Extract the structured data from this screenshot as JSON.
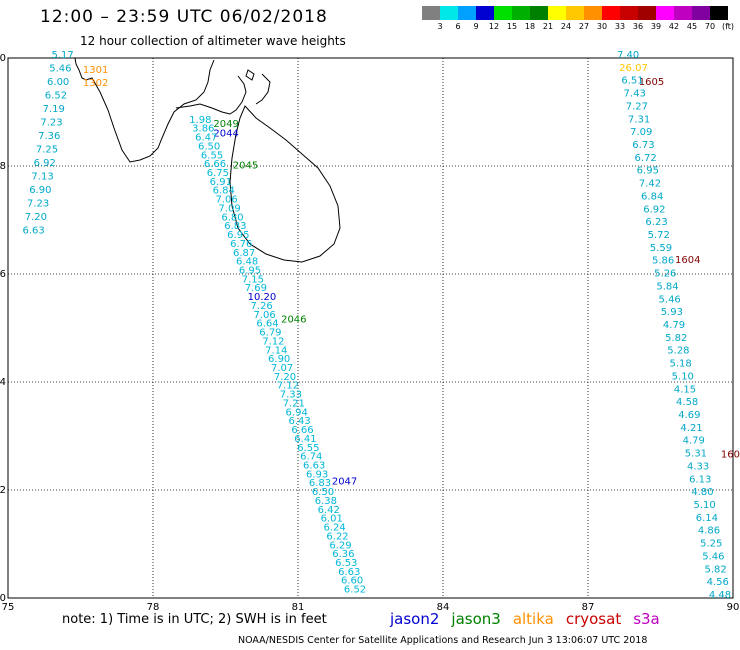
{
  "header": {
    "title": "12:00 – 23:59 UTC 06/02/2018",
    "subtitle": "12 hour collection of altimeter wave heights"
  },
  "colorbar": {
    "colors": [
      "#808080",
      "#00e8e8",
      "#00a0ff",
      "#0000d0",
      "#00e000",
      "#00b000",
      "#008000",
      "#ffff00",
      "#ffc800",
      "#ff9000",
      "#ff0000",
      "#c80000",
      "#a00000",
      "#ff00ff",
      "#c000c0",
      "#8000a0",
      "#000000"
    ],
    "labels": [
      "3",
      "6",
      "9",
      "12",
      "15",
      "18",
      "21",
      "24",
      "27",
      "30",
      "33",
      "36",
      "39",
      "42",
      "45",
      "70"
    ],
    "unit": "(ft)"
  },
  "axes": {
    "x_ticks": [
      "75",
      "78",
      "81",
      "84",
      "87",
      "90"
    ],
    "y_ticks": [
      "0",
      "2",
      "4",
      "6",
      "8",
      "10"
    ]
  },
  "note": "note: 1) Time is in UTC; 2) SWH is in feet",
  "satellites": [
    {
      "name": "jason2",
      "color": "#0000d0"
    },
    {
      "name": "jason3",
      "color": "#008000"
    },
    {
      "name": "altika",
      "color": "#ff9000"
    },
    {
      "name": "cryosat",
      "color": "#c80000"
    },
    {
      "name": "s3a",
      "color": "#c000c0"
    }
  ],
  "footer": "NOAA/NESDIS Center for Satellite Applications and Research   Jun  3 13:06:07 UTC 2018",
  "map_data": {
    "time_labels": [
      {
        "text": "1301",
        "lon": 76.55,
        "lat": 9.72,
        "color": "#ff9000"
      },
      {
        "text": "1302",
        "lon": 76.55,
        "lat": 9.48,
        "color": "#ff9000"
      },
      {
        "text": "1605",
        "lon": 88.05,
        "lat": 9.5,
        "color": "#800000"
      },
      {
        "text": "1604",
        "lon": 88.8,
        "lat": 6.2,
        "color": "#800000"
      },
      {
        "text": "160",
        "lon": 89.75,
        "lat": 2.6,
        "color": "#800000"
      },
      {
        "text": "2049",
        "lon": 79.25,
        "lat": 8.72,
        "color": "#008000"
      },
      {
        "text": "2044",
        "lon": 79.25,
        "lat": 8.55,
        "color": "#0000d0"
      },
      {
        "text": "2045",
        "lon": 79.65,
        "lat": 7.95,
        "color": "#008000"
      },
      {
        "text": "2046",
        "lon": 80.65,
        "lat": 5.1,
        "color": "#008000"
      },
      {
        "text": "2047",
        "lon": 81.7,
        "lat": 2.1,
        "color": "#0000d0"
      }
    ],
    "track_west": {
      "color": "#00a8c8",
      "values": [
        "5.17",
        "5.46",
        "6.00",
        "6.52",
        "7.19",
        "7.23",
        "7.36",
        "7.25",
        "6.92",
        "7.13",
        "6.90",
        "7.23",
        "7.20",
        "6.63"
      ],
      "lon_start": 75.9,
      "lon_end": 75.3,
      "lat_start": 10.0,
      "lat_end": 6.75
    },
    "track_east": {
      "color": "#00a8c8",
      "values": [
        "7.40",
        "26.07",
        "6.51",
        "7.43",
        "7.27",
        "7.31",
        "7.09",
        "6.73",
        "6.72",
        "6.95",
        "7.42",
        "6.84",
        "6.92",
        "6.23",
        "5.72",
        "5.59",
        "5.86",
        "5.26",
        "5.84",
        "5.46",
        "5.93",
        "4.79",
        "5.82",
        "5.28",
        "5.18",
        "5.10",
        "4.15",
        "4.58",
        "4.69",
        "4.21",
        "4.79",
        "5.31",
        "4.33",
        "6.13",
        "4.80",
        "5.10",
        "6.14",
        "4.86",
        "5.25",
        "5.46",
        "5.82",
        "4.56",
        "4.48"
      ],
      "lon_start": 87.6,
      "lon_end": 89.5,
      "lat_start": 10.0,
      "lat_end": 0.0
    },
    "track_jason": {
      "color": "#00b8d8",
      "values": [
        "1.98",
        "3.86",
        "6.47",
        "6.50",
        "6.55",
        "6.66",
        "6.75",
        "6.91",
        "6.84",
        "7.06",
        "7.09",
        "6.80",
        "6.83",
        "6.95",
        "6.76",
        "6.87",
        "6.48",
        "6.95",
        "7.15",
        "7.69",
        "10.20",
        "7.26",
        "7.06",
        "6.64",
        "6.79",
        "7.12",
        "7.14",
        "6.90",
        "7.07",
        "7.20",
        "7.12",
        "7.33",
        "7.21",
        "6.94",
        "6.43",
        "6.66",
        "6.41",
        "6.55",
        "6.74",
        "6.63",
        "6.93",
        "6.83",
        "6.50",
        "6.38",
        "6.42",
        "6.01",
        "6.24",
        "6.22",
        "6.29",
        "6.36",
        "6.53",
        "6.63",
        "6.60",
        "6.52"
      ],
      "lon_start": 78.75,
      "lon_end": 81.95,
      "lat_start": 8.8,
      "lat_end": 0.1
    }
  }
}
